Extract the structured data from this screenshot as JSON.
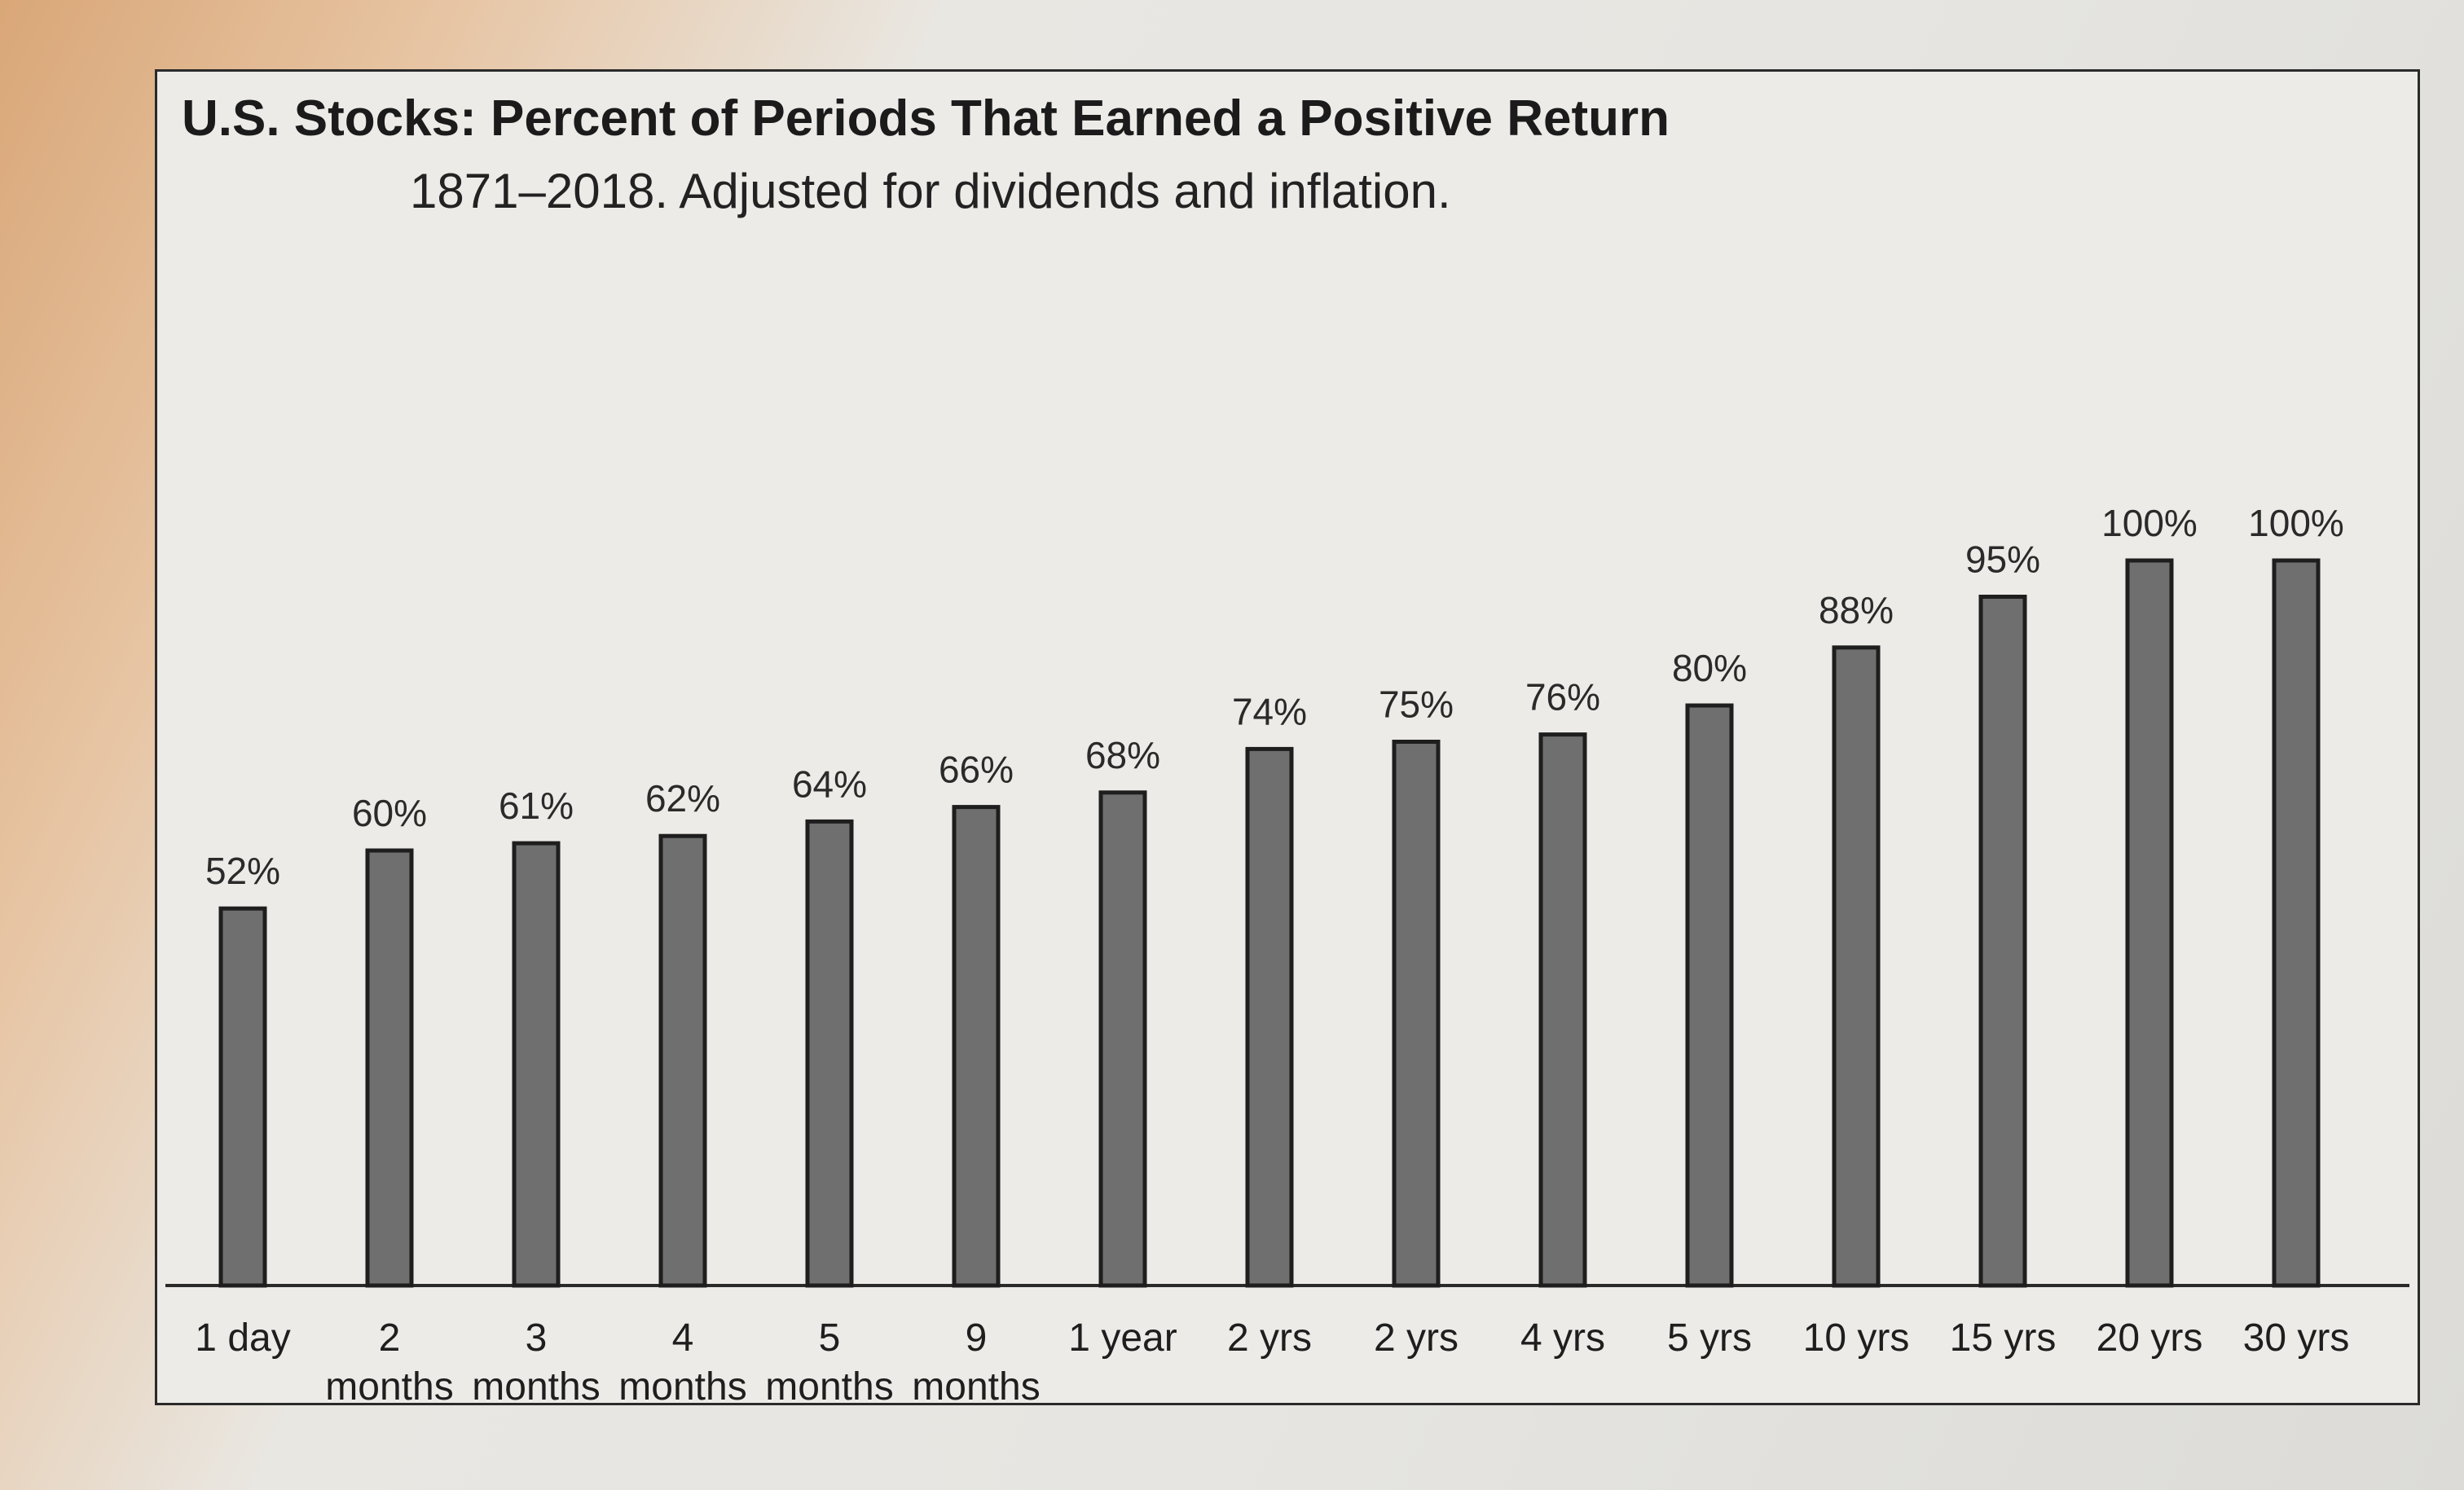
{
  "chart_data": {
    "type": "bar",
    "title": "U.S. Stocks: Percent of Periods That Earned a Positive Return",
    "subtitle": "1871–2018. Adjusted for dividends and inflation.",
    "categories": [
      "1 day",
      "2 months",
      "3 months",
      "4 months",
      "5 months",
      "9 months",
      "1 year",
      "2 yrs",
      "2 yrs",
      "4 yrs",
      "5 yrs",
      "10 yrs",
      "15 yrs",
      "20 yrs",
      "30 yrs"
    ],
    "category_lines": [
      [
        "1 day"
      ],
      [
        "2",
        "months"
      ],
      [
        "3",
        "months"
      ],
      [
        "4",
        "months"
      ],
      [
        "5",
        "months"
      ],
      [
        "9",
        "months"
      ],
      [
        "1 year"
      ],
      [
        "2 yrs"
      ],
      [
        "2 yrs"
      ],
      [
        "4 yrs"
      ],
      [
        "5 yrs"
      ],
      [
        "10 yrs"
      ],
      [
        "15 yrs"
      ],
      [
        "20 yrs"
      ],
      [
        "30 yrs"
      ]
    ],
    "values": [
      52,
      60,
      61,
      62,
      64,
      66,
      68,
      74,
      75,
      76,
      80,
      88,
      95,
      100,
      100
    ],
    "data_labels": [
      "52%",
      "60%",
      "61%",
      "62%",
      "64%",
      "66%",
      "68%",
      "74%",
      "75%",
      "76%",
      "80%",
      "88%",
      "95%",
      "100%",
      "100%"
    ],
    "ylim": [
      0,
      100
    ],
    "grid": false,
    "bar_color": "#6f6f6f"
  }
}
